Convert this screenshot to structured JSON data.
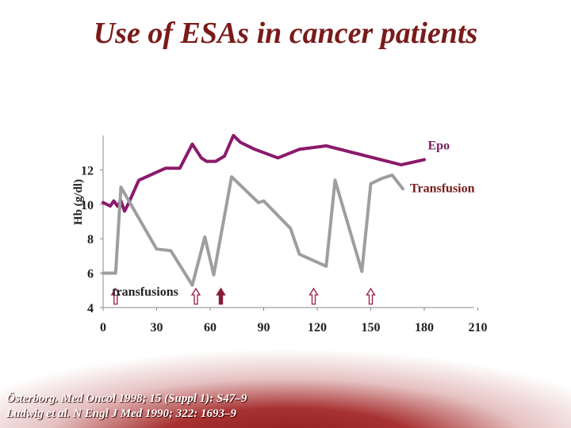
{
  "slide": {
    "title": "Use of ESAs in cancer patients",
    "citation_1": "Österborg. Med Oncol 1998; 15 (Suppl 1): S47–9",
    "citation_2": "Ludwig et al. N Engl J Med 1990; 322: 1693–9"
  },
  "chart_data": {
    "type": "line",
    "title": "",
    "xlabel": "",
    "ylabel": "Hb (g/dl)",
    "xlim": [
      0,
      210
    ],
    "ylim": [
      4,
      14
    ],
    "x_ticks": [
      0,
      30,
      60,
      90,
      120,
      150,
      180,
      210
    ],
    "y_ticks": [
      4,
      6,
      8,
      10,
      12
    ],
    "series": [
      {
        "name": "Epo",
        "color": "#8b1a6b",
        "x": [
          0,
          4,
          6,
          8,
          10,
          12,
          14,
          20,
          35,
          43,
          50,
          55,
          58,
          63,
          68,
          73,
          77,
          85,
          98,
          110,
          125,
          167,
          180
        ],
        "y": [
          10.1,
          9.9,
          10.2,
          9.9,
          10.2,
          9.6,
          10.0,
          11.4,
          12.1,
          12.1,
          13.5,
          12.7,
          12.5,
          12.5,
          12.8,
          14.0,
          13.6,
          13.2,
          12.7,
          13.2,
          13.4,
          12.3,
          12.6
        ]
      },
      {
        "name": "Transfusion",
        "color": "#9e9e9e",
        "x": [
          0,
          7,
          10,
          30,
          38,
          50,
          57,
          62,
          72,
          87,
          90,
          105,
          110,
          125,
          130,
          145,
          150,
          156,
          162,
          168
        ],
        "y": [
          6.0,
          6.0,
          11.0,
          7.4,
          7.3,
          5.3,
          8.1,
          5.9,
          11.6,
          10.1,
          10.2,
          8.6,
          7.1,
          6.4,
          11.4,
          6.1,
          11.2,
          11.5,
          11.7,
          10.9
        ]
      }
    ],
    "legend_epo": "Epo",
    "legend_transfusion": "Transfusion",
    "annotation": "transfusions",
    "transfusion_arrows": [
      {
        "day": 7,
        "style": "outline"
      },
      {
        "day": 52,
        "style": "outline"
      },
      {
        "day": 66,
        "style": "filled"
      },
      {
        "day": 118,
        "style": "outline"
      },
      {
        "day": 150,
        "style": "outline"
      }
    ]
  }
}
